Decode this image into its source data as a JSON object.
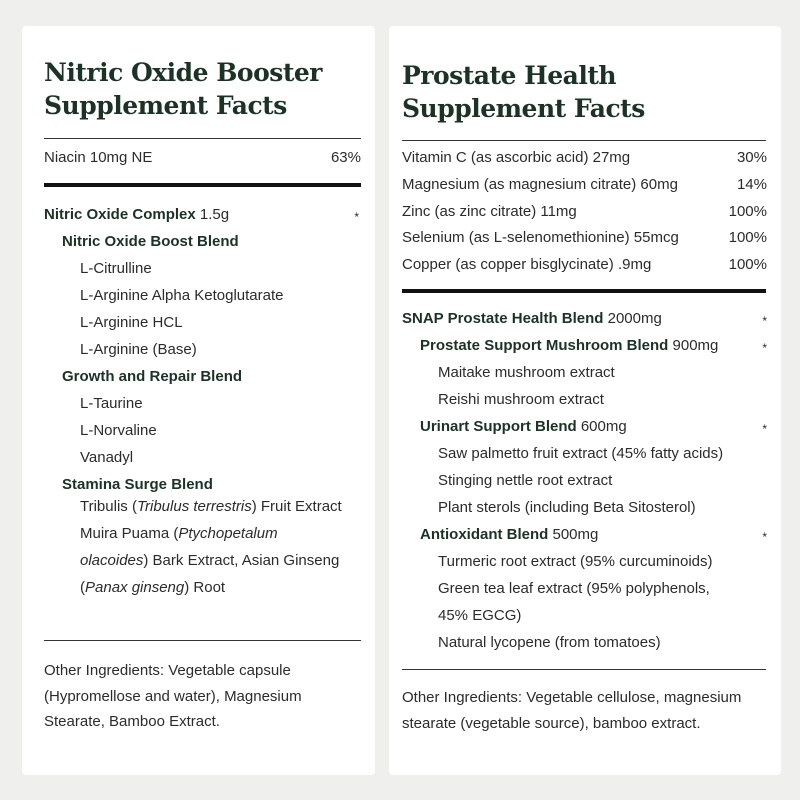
{
  "left": {
    "title_line1": "Nitric Oxide Booster",
    "title_line2": "Supplement Facts",
    "vitamins": [
      {
        "name": "Niacin 10mg NE",
        "dv": "63%"
      }
    ],
    "ingredients": [
      {
        "level": 0,
        "bold": "Nitric Oxide Complex",
        "amount": " 1.5g",
        "dv": "*"
      },
      {
        "level": 1,
        "bold": "Nitric Oxide Boost Blend",
        "amount": "",
        "dv": ""
      },
      {
        "level": 2,
        "bold": "",
        "amount": "L-Citrulline",
        "dv": ""
      },
      {
        "level": 2,
        "bold": "",
        "amount": "L-Arginine Alpha Ketoglutarate",
        "dv": ""
      },
      {
        "level": 2,
        "bold": "",
        "amount": "L-Arginine HCL",
        "dv": ""
      },
      {
        "level": 2,
        "bold": "",
        "amount": "L-Arginine (Base)",
        "dv": ""
      },
      {
        "level": 1,
        "bold": "Growth and Repair Blend",
        "amount": "",
        "dv": ""
      },
      {
        "level": 2,
        "bold": "",
        "amount": "L-Taurine",
        "dv": ""
      },
      {
        "level": 2,
        "bold": "",
        "amount": "L-Norvaline",
        "dv": ""
      },
      {
        "level": 2,
        "bold": "",
        "amount": "Vanadyl",
        "dv": ""
      },
      {
        "level": 1,
        "bold": "Stamina Surge Blend",
        "amount": "",
        "dv": ""
      }
    ],
    "stamina_text": [
      {
        "text": "Tribulis (",
        "italic": false
      },
      {
        "text": "Tribulus terrestris",
        "italic": true
      },
      {
        "text": ") Fruit Extract Muira Puama (",
        "italic": false
      },
      {
        "text": "Ptychopetalum olacoides",
        "italic": true
      },
      {
        "text": ") Bark Extract, Asian Ginseng (",
        "italic": false
      },
      {
        "text": "Panax ginseng",
        "italic": true
      },
      {
        "text": ") Root",
        "italic": false
      }
    ],
    "other_ingredients": "Other Ingredients: Vegetable capsule (Hypromellose and water), Magnesium Stearate, Bamboo Extract."
  },
  "right": {
    "title_line1": "Prostate Health",
    "title_line2": "Supplement Facts",
    "vitamins": [
      {
        "name": "Vitamin C (as ascorbic acid) 27mg",
        "dv": "30%"
      },
      {
        "name": "Magnesium (as magnesium citrate) 60mg",
        "dv": "14%"
      },
      {
        "name": "Zinc (as zinc citrate) 11mg",
        "dv": "100%"
      },
      {
        "name": "Selenium (as L-selenomethionine) 55mcg",
        "dv": "100%"
      },
      {
        "name": "Copper (as copper bisglycinate) .9mg",
        "dv": "100%"
      }
    ],
    "ingredients": [
      {
        "level": 0,
        "bold": "SNAP Prostate Health Blend",
        "amount": " 2000mg",
        "dv": "*"
      },
      {
        "level": 1,
        "bold": "Prostate Support Mushroom Blend",
        "amount": " 900mg",
        "dv": "*"
      },
      {
        "level": 2,
        "bold": "",
        "amount": "Maitake mushroom extract",
        "dv": ""
      },
      {
        "level": 2,
        "bold": "",
        "amount": "Reishi mushroom extract",
        "dv": ""
      },
      {
        "level": 1,
        "bold": "Urinart Support Blend",
        "amount": " 600mg",
        "dv": "*"
      },
      {
        "level": 2,
        "bold": "",
        "amount": "Saw palmetto fruit extract (45% fatty acids)",
        "dv": ""
      },
      {
        "level": 2,
        "bold": "",
        "amount": "Stinging nettle root extract",
        "dv": ""
      },
      {
        "level": 2,
        "bold": "",
        "amount": "Plant sterols (including Beta Sitosterol)",
        "dv": ""
      },
      {
        "level": 1,
        "bold": "Antioxidant Blend",
        "amount": " 500mg",
        "dv": "*"
      },
      {
        "level": 2,
        "bold": "",
        "amount": "Turmeric root extract (95% curcuminoids)",
        "dv": ""
      },
      {
        "level": 2,
        "bold": "",
        "amount": "Green tea leaf extract (95% polyphenols,",
        "dv": ""
      },
      {
        "level": 2,
        "bold": "",
        "amount": "45% EGCG)",
        "dv": ""
      },
      {
        "level": 2,
        "bold": "",
        "amount": "Natural lycopene (from tomatoes)",
        "dv": ""
      }
    ],
    "other_ingredients": "Other Ingredients: Vegetable cellulose, magnesium stearate (vegetable source), bamboo extract."
  }
}
